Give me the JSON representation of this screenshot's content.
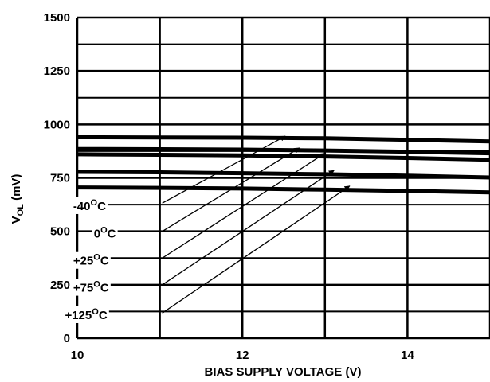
{
  "chart_data": {
    "type": "line",
    "title": "",
    "xlabel": "BIAS SUPPLY VOLTAGE (V)",
    "ylabel_main": "V",
    "ylabel_sub": "OL",
    "ylabel_unit": " (mV)",
    "xlim": [
      10,
      15
    ],
    "ylim": [
      0,
      1500
    ],
    "xticks": [
      10,
      12,
      14
    ],
    "yticks": [
      0,
      250,
      500,
      750,
      1000,
      1250,
      1500
    ],
    "grid": true,
    "series": [
      {
        "name": "-40°C",
        "x": [
          10,
          11,
          12,
          13,
          14,
          15
        ],
        "values": [
          940,
          939,
          938,
          935,
          928,
          920
        ]
      },
      {
        "name": "0°C",
        "x": [
          10,
          11,
          12,
          13,
          14,
          15
        ],
        "values": [
          885,
          884,
          882,
          878,
          872,
          865
        ]
      },
      {
        "name": "+25°C",
        "x": [
          10,
          11,
          12,
          13,
          14,
          15
        ],
        "values": [
          860,
          858,
          855,
          850,
          843,
          835
        ]
      },
      {
        "name": "+75°C",
        "x": [
          10,
          11,
          12,
          13,
          14,
          15
        ],
        "values": [
          778,
          776,
          772,
          767,
          760,
          752
        ]
      },
      {
        "name": "+125°C",
        "x": [
          10,
          11,
          12,
          13,
          14,
          15
        ],
        "values": [
          705,
          703,
          700,
          695,
          689,
          682
        ]
      }
    ],
    "annotations": [
      {
        "label": "-40°C",
        "label_pos": [
          9.95,
          618
        ],
        "arrow_from": [
          11.03,
          632
        ],
        "arrow_to": [
          12.52,
          945
        ]
      },
      {
        "label": "0°C",
        "label_pos": [
          10.2,
          490
        ],
        "arrow_from": [
          11.03,
          500
        ],
        "arrow_to": [
          12.69,
          890
        ]
      },
      {
        "label": "+25°C",
        "label_pos": [
          9.95,
          362
        ],
        "arrow_from": [
          11.03,
          375
        ],
        "arrow_to": [
          13.0,
          865
        ]
      },
      {
        "label": "+75°C",
        "label_pos": [
          9.95,
          236
        ],
        "arrow_from": [
          11.03,
          250
        ],
        "arrow_to": [
          13.11,
          785
        ]
      },
      {
        "label": "+125°C",
        "label_pos": [
          9.85,
          108
        ],
        "arrow_from": [
          11.03,
          118
        ],
        "arrow_to": [
          13.3,
          712
        ]
      }
    ]
  }
}
